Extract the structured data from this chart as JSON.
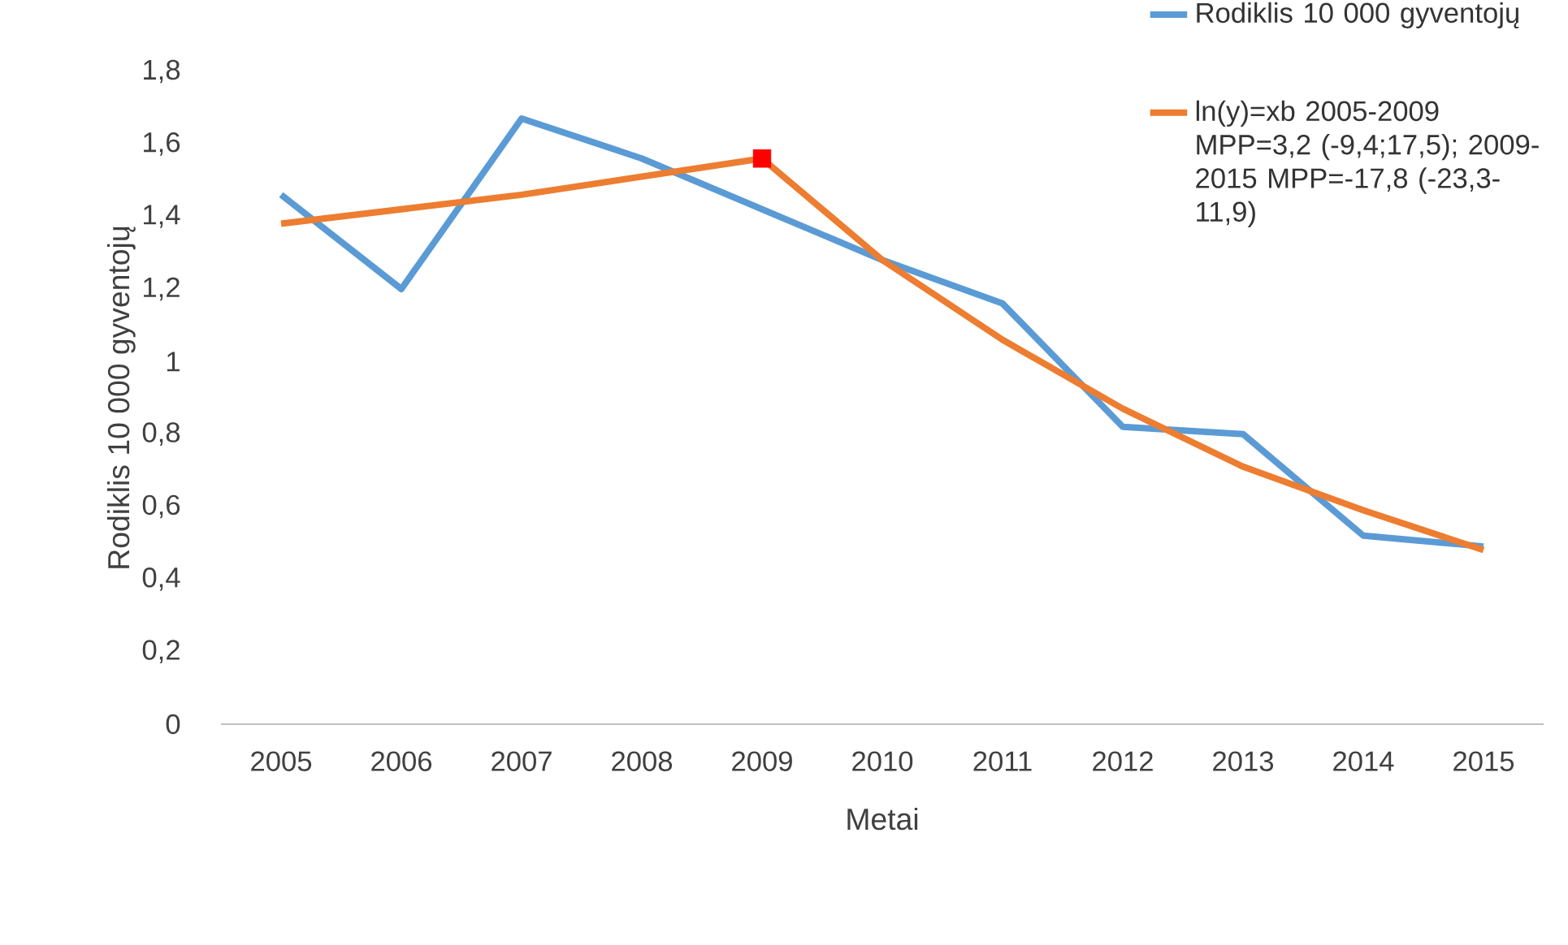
{
  "chart_data": {
    "type": "line",
    "xlabel": "Metai",
    "ylabel": "Rodiklis 10 000 gyventojų",
    "categories": [
      "2005",
      "2006",
      "2007",
      "2008",
      "2009",
      "2010",
      "2011",
      "2012",
      "2013",
      "2014",
      "2015"
    ],
    "ylim": [
      0,
      1.8
    ],
    "yticks": [
      0,
      {
        "value": 0.2,
        "label": "0,2"
      },
      {
        "value": 0.4,
        "label": "0,4"
      },
      {
        "value": 0.6,
        "label": "0,6"
      },
      {
        "value": 0.8,
        "label": "0,8"
      },
      1,
      {
        "value": 1.2,
        "label": "1,2"
      },
      {
        "value": 1.4,
        "label": "1,4"
      },
      {
        "value": 1.6,
        "label": "1,6"
      },
      {
        "value": 1.8,
        "label": "1,8"
      }
    ],
    "grid": false,
    "legend": "top right",
    "marker": "none",
    "series": [
      {
        "name": "Rodiklis 10 000 gyventojų",
        "color": "#5b9bd5",
        "values": [
          1.46,
          1.2,
          1.67,
          1.56,
          1.42,
          1.28,
          1.16,
          0.82,
          0.8,
          0.52,
          0.49
        ]
      },
      {
        "name": "ln(y)=xb 2005-2009 MPP=3,2 (-9,4;17,5); 2009-2015 MPP=-17,8 (-23,3-11,9)",
        "color": "#ed7d31",
        "values": [
          1.38,
          1.42,
          1.46,
          1.51,
          1.56,
          1.28,
          1.06,
          0.87,
          0.71,
          0.59,
          0.48
        ]
      },
      {
        "type": "scatter",
        "color": "#ff0000",
        "marker": "square",
        "values": [
          null,
          null,
          null,
          null,
          1.56,
          null,
          null,
          null,
          null,
          null,
          null
        ]
      }
    ]
  }
}
